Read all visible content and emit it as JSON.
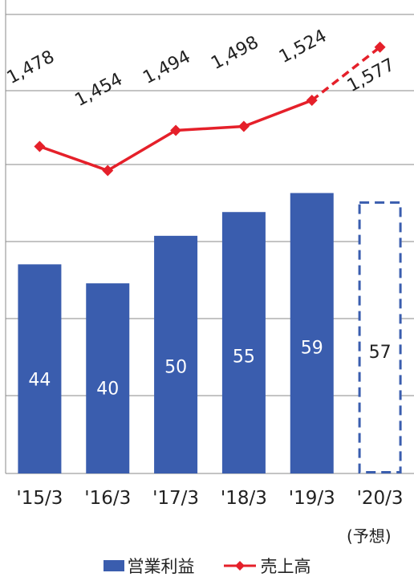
{
  "chart_data": {
    "type": "bar+line",
    "categories": [
      "'15/3",
      "'16/3",
      "'17/3",
      "'18/3",
      "'19/3",
      "'20/3"
    ],
    "forecast_note": "(予想)",
    "series": [
      {
        "name": "営業利益",
        "type": "bar",
        "values": [
          44,
          40,
          50,
          55,
          59,
          57
        ],
        "forecast_last": true,
        "color": "#3a5dae"
      },
      {
        "name": "売上高",
        "type": "line",
        "values": [
          1478,
          1454,
          1494,
          1498,
          1524,
          1577
        ],
        "value_labels": [
          "1,478",
          "1,454",
          "1,494",
          "1,498",
          "1,524",
          "1,577"
        ],
        "forecast_last": true,
        "color": "#e5202a"
      }
    ],
    "bar_ylim": [
      0,
      65
    ],
    "line_ylim": [
      1400,
      1600
    ],
    "grid": true,
    "legend_position": "bottom"
  }
}
